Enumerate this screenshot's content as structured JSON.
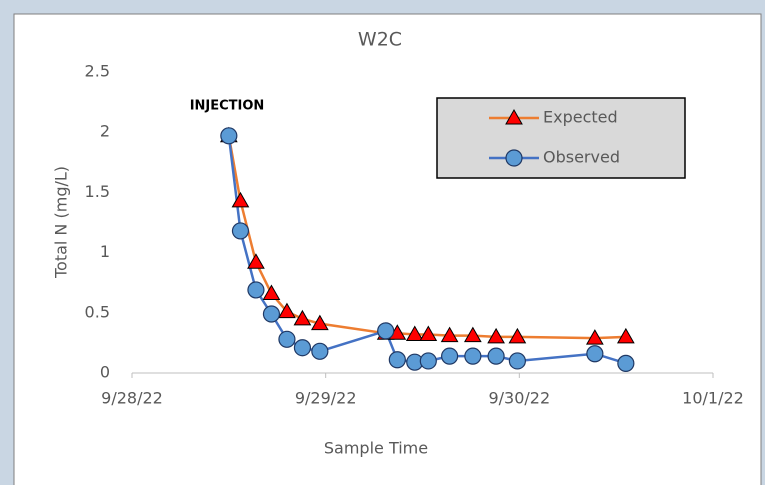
{
  "chart_data": {
    "type": "line",
    "title": "W2C",
    "x_label": "Sample Time",
    "y_label": "Total N (mg/L)",
    "annotations": [
      "INJECTION"
    ],
    "x": [
      44832.5,
      44832.56,
      44832.64,
      44832.72,
      44832.8,
      44832.88,
      44832.97,
      44833.31,
      44833.37,
      44833.46,
      44833.53,
      44833.64,
      44833.76,
      44833.88,
      44833.99,
      44834.39,
      44834.55
    ],
    "series": [
      {
        "name": "Expected",
        "color": "#ed7d31",
        "marker_color": "#ff0000",
        "marker": "triangle",
        "values": [
          1.97,
          1.43,
          0.92,
          0.66,
          0.51,
          0.45,
          0.41,
          0.33,
          0.33,
          0.32,
          0.32,
          0.31,
          0.31,
          0.3,
          0.3,
          0.29,
          0.3
        ]
      },
      {
        "name": "Observed",
        "color": "#4472c4",
        "marker_color": "#5b9bd5",
        "marker": "circle",
        "values": [
          1.97,
          1.18,
          0.69,
          0.49,
          0.28,
          0.21,
          0.18,
          0.35,
          0.11,
          0.09,
          0.1,
          0.14,
          0.14,
          0.14,
          0.1,
          0.16,
          0.08
        ]
      }
    ],
    "xlim": [
      44832,
      44835
    ],
    "xticks": [
      {
        "value": 44832,
        "label": "9/28/22"
      },
      {
        "value": 44833,
        "label": "9/29/22"
      },
      {
        "value": 44834,
        "label": "9/30/22"
      },
      {
        "value": 44835,
        "label": "10/1/22"
      }
    ],
    "ylim": [
      0,
      2.5
    ],
    "yticks": [
      0,
      0.5,
      1,
      1.5,
      2,
      2.5
    ],
    "grid": false,
    "legend": "upper right"
  }
}
